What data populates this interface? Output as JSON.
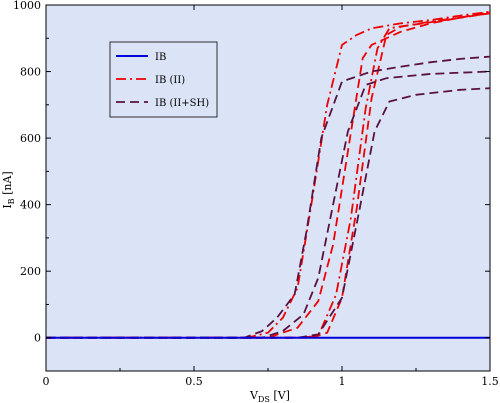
{
  "chart_data": {
    "type": "line",
    "xlabel": "V",
    "xlabel_sub": "DS",
    "xlabel_unit": " [V]",
    "ylabel": "I",
    "ylabel_sub": "B",
    "ylabel_unit": " [nA]",
    "xlim": [
      0,
      1.5
    ],
    "ylim": [
      -100,
      1000
    ],
    "xticks": [
      0,
      0.5,
      1,
      1.5
    ],
    "xtick_labels": [
      "0",
      "0.5",
      "1",
      "1.5"
    ],
    "yticks": [
      0,
      200,
      400,
      600,
      800,
      1000
    ],
    "ytick_labels": [
      "0",
      "200",
      "400",
      "600",
      "800",
      "1000"
    ],
    "grid": false,
    "background_color": "#dbe4f7",
    "legend_position": "top-left",
    "series": [
      {
        "name": "IB",
        "color": "#0000dd",
        "dash": "solid",
        "curves": [
          [
            [
              0,
              0
            ],
            [
              1.5,
              0
            ]
          ]
        ]
      },
      {
        "name": "IB (II)",
        "color": "#ee0000",
        "dash": "dashdot",
        "curves": [
          [
            [
              0,
              0
            ],
            [
              0.68,
              0
            ],
            [
              0.75,
              15
            ],
            [
              0.8,
              60
            ],
            [
              0.85,
              150
            ],
            [
              0.9,
              420
            ],
            [
              0.95,
              700
            ],
            [
              1.0,
              880
            ],
            [
              1.05,
              910
            ],
            [
              1.1,
              930
            ],
            [
              1.2,
              945
            ],
            [
              1.3,
              955
            ],
            [
              1.4,
              968
            ],
            [
              1.5,
              980
            ]
          ],
          [
            [
              0,
              0
            ],
            [
              0.85,
              0
            ],
            [
              0.92,
              5
            ],
            [
              0.98,
              130
            ],
            [
              1.03,
              360
            ],
            [
              1.08,
              690
            ],
            [
              1.12,
              870
            ],
            [
              1.16,
              930
            ],
            [
              1.3,
              950
            ],
            [
              1.5,
              975
            ]
          ]
        ]
      },
      {
        "name": "IB (II)",
        "color": "#ee0000",
        "dash": "dash",
        "curves": [
          [
            [
              0,
              0
            ],
            [
              0.75,
              0
            ],
            [
              0.85,
              30
            ],
            [
              0.92,
              110
            ],
            [
              0.97,
              280
            ],
            [
              1.02,
              560
            ],
            [
              1.07,
              840
            ],
            [
              1.1,
              880
            ],
            [
              1.2,
              920
            ],
            [
              1.3,
              945
            ],
            [
              1.4,
              962
            ],
            [
              1.5,
              978
            ]
          ],
          [
            [
              0,
              0
            ],
            [
              0.9,
              0
            ],
            [
              0.95,
              15
            ],
            [
              1.0,
              120
            ],
            [
              1.05,
              390
            ],
            [
              1.1,
              720
            ],
            [
              1.15,
              910
            ],
            [
              1.2,
              935
            ],
            [
              1.5,
              975
            ]
          ]
        ]
      },
      {
        "name": "IB (II+SH)",
        "color": "#5a1040",
        "dash": "dash",
        "curves": [
          [
            [
              0,
              0
            ],
            [
              0.67,
              0
            ],
            [
              0.73,
              20
            ],
            [
              0.78,
              60
            ],
            [
              0.84,
              130
            ],
            [
              0.88,
              320
            ],
            [
              0.93,
              600
            ],
            [
              1.0,
              770
            ],
            [
              1.1,
              800
            ],
            [
              1.2,
              815
            ],
            [
              1.3,
              828
            ],
            [
              1.4,
              838
            ],
            [
              1.5,
              845
            ]
          ],
          [
            [
              0,
              0
            ],
            [
              0.73,
              0
            ],
            [
              0.8,
              20
            ],
            [
              0.87,
              70
            ],
            [
              0.92,
              180
            ],
            [
              0.97,
              400
            ],
            [
              1.02,
              620
            ],
            [
              1.08,
              760
            ],
            [
              1.15,
              780
            ],
            [
              1.3,
              793
            ],
            [
              1.5,
              800
            ]
          ],
          [
            [
              0,
              0
            ],
            [
              0.85,
              0
            ],
            [
              0.92,
              10
            ],
            [
              1.0,
              120
            ],
            [
              1.06,
              390
            ],
            [
              1.11,
              620
            ],
            [
              1.16,
              710
            ],
            [
              1.25,
              730
            ],
            [
              1.4,
              745
            ],
            [
              1.5,
              750
            ]
          ]
        ]
      }
    ]
  }
}
